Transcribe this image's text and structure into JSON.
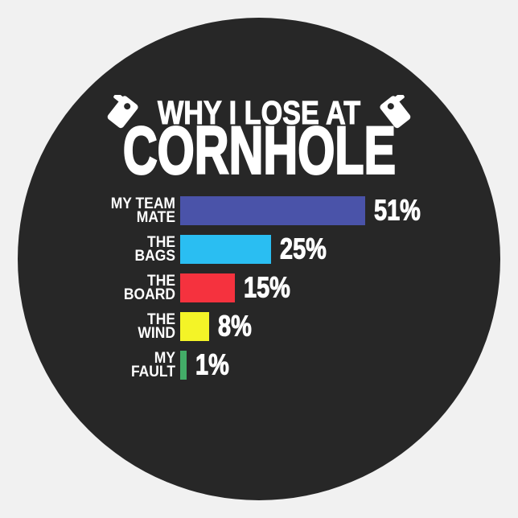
{
  "sticker": {
    "background_color": "#f1f1f1",
    "circle_color": "#272727",
    "text_color": "#ffffff",
    "title_line1": "WHY I LOSE AT",
    "title_line2": "CORNHOLE"
  },
  "icons": {
    "left": "cornhole-board-icon",
    "right": "cornhole-board-icon"
  },
  "chart_data": {
    "type": "bar",
    "orientation": "horizontal",
    "title": "WHY I LOSE AT CORNHOLE",
    "categories": [
      "MY TEAM MATE",
      "THE BAGS",
      "THE BOARD",
      "THE WIND",
      "MY FAULT"
    ],
    "values": [
      51,
      25,
      15,
      8,
      1
    ],
    "value_labels": [
      "51%",
      "25%",
      "15%",
      "8%",
      "1%"
    ],
    "bar_colors": [
      "#4a53a9",
      "#2abef2",
      "#f5323e",
      "#f4f427",
      "#43ad68"
    ],
    "xlim": [
      0,
      51
    ],
    "grid": false,
    "legend": false,
    "rows": [
      {
        "label_line1": "MY TEAM",
        "label_line2": "MATE",
        "value": 51,
        "pct": "51%",
        "color": "#4a53a9"
      },
      {
        "label_line1": "THE",
        "label_line2": "BAGS",
        "value": 25,
        "pct": "25%",
        "color": "#2abef2"
      },
      {
        "label_line1": "THE",
        "label_line2": "BOARD",
        "value": 15,
        "pct": "15%",
        "color": "#f5323e"
      },
      {
        "label_line1": "THE",
        "label_line2": "WIND",
        "value": 8,
        "pct": "8%",
        "color": "#f4f427"
      },
      {
        "label_line1": "MY",
        "label_line2": "FAULT",
        "value": 1,
        "pct": "1%",
        "color": "#43ad68"
      }
    ]
  }
}
